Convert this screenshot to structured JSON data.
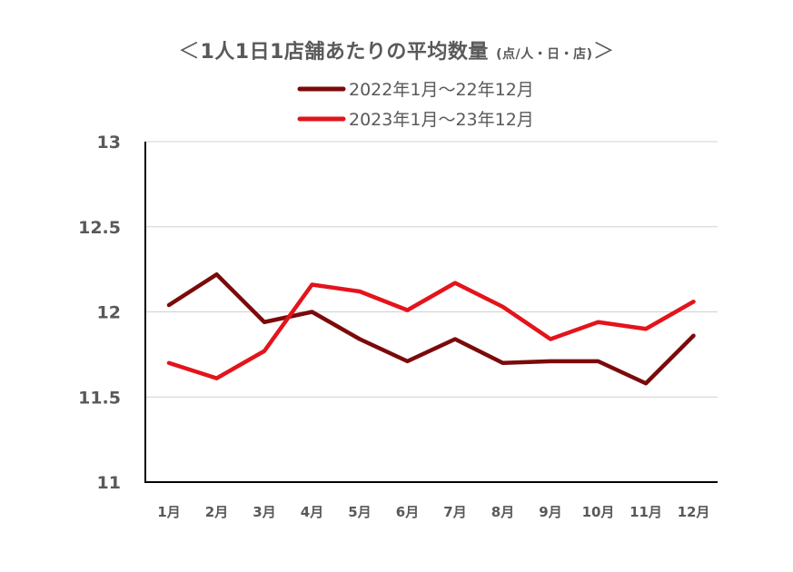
{
  "chart_data": {
    "type": "line",
    "title": "1人1日1店舗あたりの平均数量",
    "title_open": "＜",
    "title_close": "＞",
    "title_unit": "(点/人・日・店)",
    "xlabel": "",
    "ylabel": "",
    "categories": [
      "1月",
      "2月",
      "3月",
      "4月",
      "5月",
      "6月",
      "7月",
      "8月",
      "9月",
      "10月",
      "11月",
      "12月"
    ],
    "ylim": [
      11,
      13
    ],
    "yticks": [
      11,
      11.5,
      12,
      12.5,
      13
    ],
    "ytick_labels": [
      "11",
      "11.5",
      "12",
      "12.5",
      "13"
    ],
    "grid": true,
    "legend_position": "top",
    "series": [
      {
        "name": "2022年1月〜22年12月",
        "color": "#7B0A0A",
        "values": [
          12.04,
          12.22,
          11.94,
          12.0,
          11.84,
          11.71,
          11.84,
          11.7,
          11.71,
          11.71,
          11.58,
          11.86
        ]
      },
      {
        "name": "2023年1月〜23年12月",
        "color": "#E3141B",
        "values": [
          11.7,
          11.61,
          11.77,
          12.16,
          12.12,
          12.01,
          12.17,
          12.03,
          11.84,
          11.94,
          11.9,
          12.06
        ]
      }
    ]
  }
}
